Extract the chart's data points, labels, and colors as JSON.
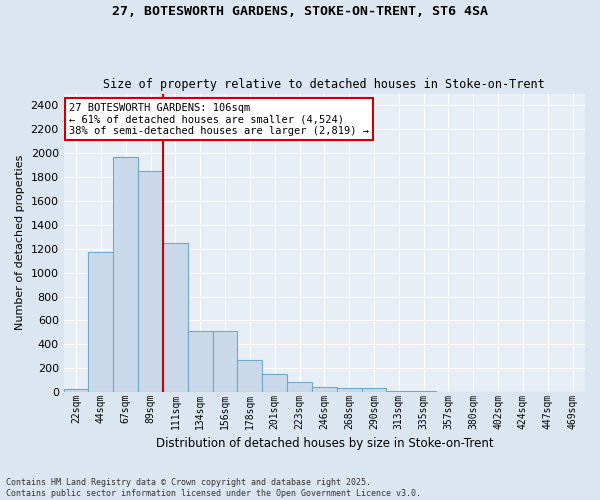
{
  "title_line1": "27, BOTESWORTH GARDENS, STOKE-ON-TRENT, ST6 4SA",
  "title_line2": "Size of property relative to detached houses in Stoke-on-Trent",
  "xlabel": "Distribution of detached houses by size in Stoke-on-Trent",
  "ylabel": "Number of detached properties",
  "categories": [
    "22sqm",
    "44sqm",
    "67sqm",
    "89sqm",
    "111sqm",
    "134sqm",
    "156sqm",
    "178sqm",
    "201sqm",
    "223sqm",
    "246sqm",
    "268sqm",
    "290sqm",
    "313sqm",
    "335sqm",
    "357sqm",
    "380sqm",
    "402sqm",
    "424sqm",
    "447sqm",
    "469sqm"
  ],
  "values": [
    22,
    1175,
    1970,
    1850,
    1250,
    515,
    515,
    270,
    155,
    80,
    40,
    30,
    30,
    8,
    5,
    3,
    2,
    2,
    1,
    1,
    1
  ],
  "bar_color": "#c9d9ea",
  "bar_edge_color": "#6fa8c8",
  "vline_x": 3.5,
  "vline_color": "#cc0000",
  "annotation_text": "27 BOTESWORTH GARDENS: 106sqm\n← 61% of detached houses are smaller (4,524)\n38% of semi-detached houses are larger (2,819) →",
  "annotation_box_color": "#ffffff",
  "annotation_box_edge_color": "#cc0000",
  "ylim": [
    0,
    2500
  ],
  "yticks": [
    0,
    200,
    400,
    600,
    800,
    1000,
    1200,
    1400,
    1600,
    1800,
    2000,
    2200,
    2400
  ],
  "fig_bg_color": "#dce6f0",
  "ax_bg_color": "#e8eef5",
  "grid_color": "#ffffff",
  "footer_line1": "Contains HM Land Registry data © Crown copyright and database right 2025.",
  "footer_line2": "Contains public sector information licensed under the Open Government Licence v3.0."
}
